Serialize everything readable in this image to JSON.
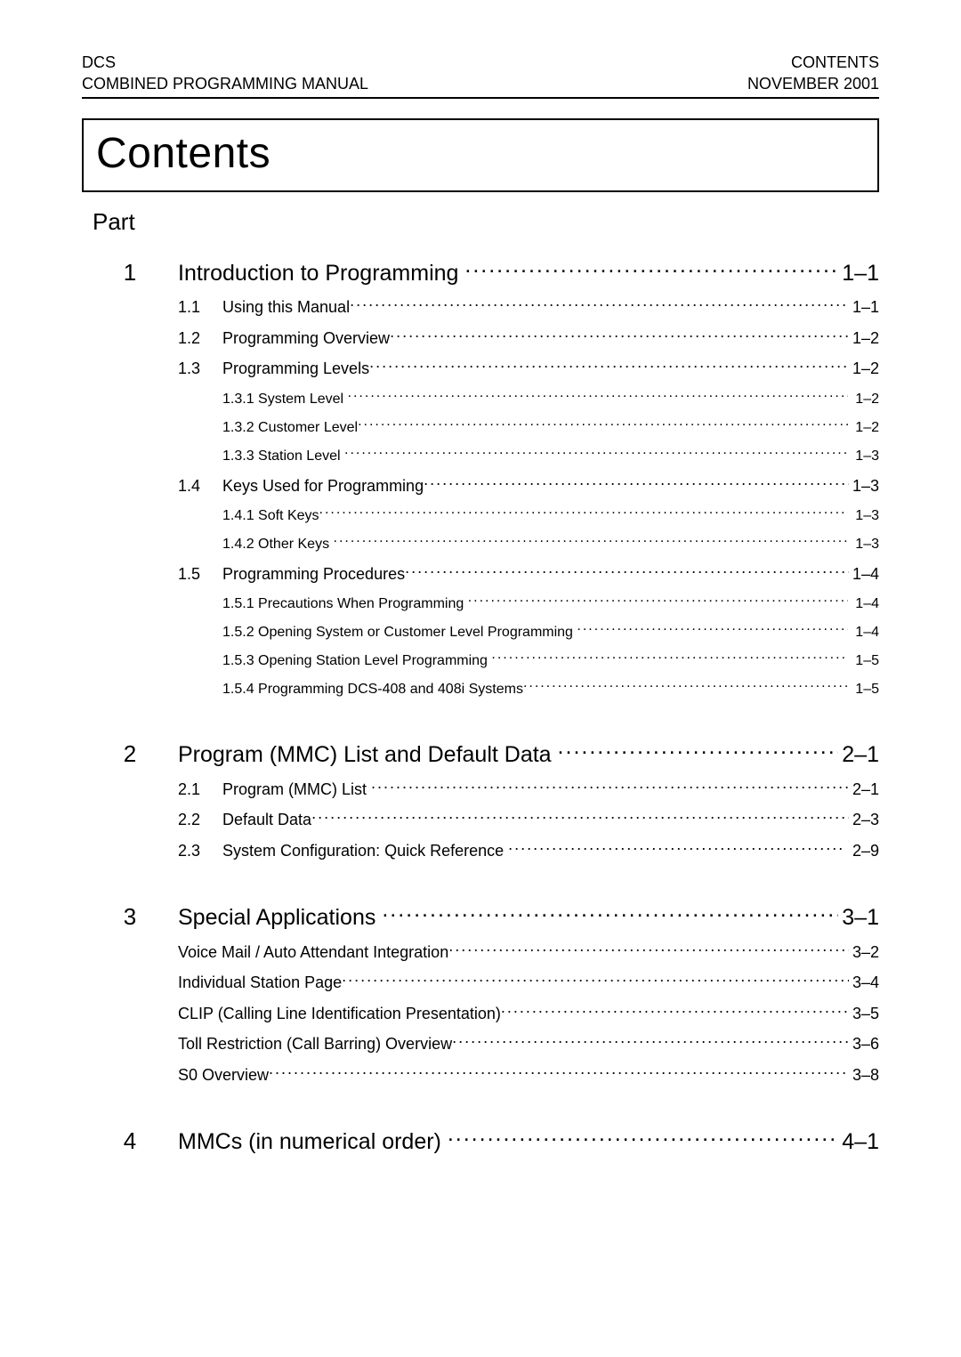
{
  "header": {
    "left_line1": "DCS",
    "left_line2": "COMBINED PROGRAMMING MANUAL",
    "right_line1": "CONTENTS",
    "right_line2": "NOVEMBER 2001"
  },
  "title": "Contents",
  "part_label": "Part",
  "colors": {
    "text": "#000000",
    "background": "#ffffff",
    "rule": "#000000"
  },
  "typography": {
    "header_fontsize": 18,
    "title_fontsize": 48,
    "part_fontsize": 26,
    "section_num_fontsize": 26,
    "section_title_fontsize": 25,
    "sub_fontsize": 18,
    "subsub_fontsize": 16,
    "font_family": "Arial"
  },
  "sections": [
    {
      "num": "1",
      "title": "Introduction to Programming",
      "page": "1–1",
      "subs": [
        {
          "num": "1.1",
          "title": "Using this Manual",
          "page": "1–1"
        },
        {
          "num": "1.2",
          "title": "Programming Overview",
          "page": "1–2"
        },
        {
          "num": "1.3",
          "title": "Programming Levels",
          "page": "1–2",
          "subs": [
            {
              "title": "1.3.1 System Level",
              "page": "1–2"
            },
            {
              "title": "1.3.2 Customer Level",
              "page": "1–2"
            },
            {
              "title": "1.3.3 Station Level",
              "page": "1–3"
            }
          ]
        },
        {
          "num": "1.4",
          "title": "Keys Used for Programming",
          "page": "1–3",
          "subs": [
            {
              "title": "1.4.1 Soft Keys",
              "page": "1–3"
            },
            {
              "title": "1.4.2 Other Keys",
              "page": "1–3"
            }
          ]
        },
        {
          "num": "1.5",
          "title": "Programming Procedures",
          "page": "1–4",
          "subs": [
            {
              "title": "1.5.1 Precautions When Programming",
              "page": "1–4"
            },
            {
              "title": "1.5.2 Opening System or Customer Level Programming",
              "page": "1–4"
            },
            {
              "title": "1.5.3 Opening Station Level Programming",
              "page": "1–5"
            },
            {
              "title": "1.5.4 Programming DCS-408 and 408i Systems",
              "page": "1–5"
            }
          ]
        }
      ]
    },
    {
      "num": "2",
      "title": "Program (MMC) List and Default Data",
      "page": "2–1",
      "subs": [
        {
          "num": "2.1",
          "title": "Program (MMC) List",
          "page": "2–1"
        },
        {
          "num": "2.2",
          "title": "Default Data",
          "page": "2–3"
        },
        {
          "num": "2.3",
          "title": "System Configuration: Quick Reference",
          "page": "2–9"
        }
      ]
    },
    {
      "num": "3",
      "title": "Special Applications",
      "page": "3–1",
      "unnumbered_subs": [
        {
          "title": "Voice Mail / Auto Attendant Integration",
          "page": "3–2"
        },
        {
          "title": "Individual Station Page",
          "page": "3–4"
        },
        {
          "title": "CLIP (Calling Line Identification Presentation)",
          "page": "3–5"
        },
        {
          "title": "Toll Restriction (Call Barring) Overview",
          "page": "3–6"
        },
        {
          "title": "S0 Overview",
          "page": "3–8"
        }
      ]
    },
    {
      "num": "4",
      "title": "MMCs (in numerical order)",
      "page": "4–1"
    }
  ]
}
